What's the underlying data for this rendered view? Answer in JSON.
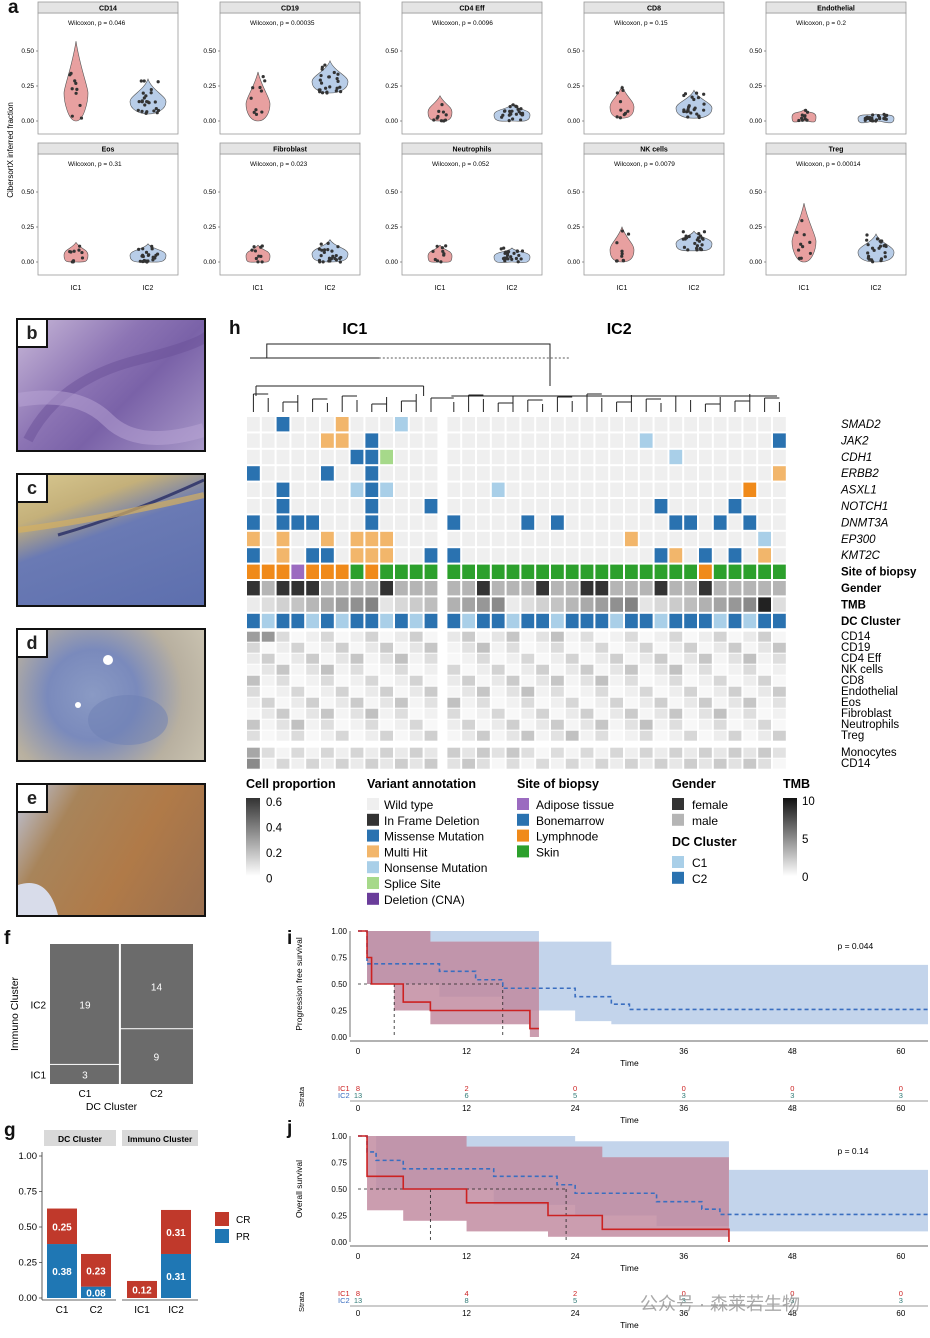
{
  "panel_letters": {
    "a": "a",
    "b": "b",
    "c": "c",
    "d": "d",
    "e": "e",
    "f": "f",
    "g": "g",
    "h": "h",
    "i": "i",
    "j": "j"
  },
  "colors": {
    "ic1": "#e8a0a0",
    "ic2": "#b8cde8",
    "ic1_line": "#cc2222",
    "ic2_line": "#3a6ec0",
    "purple": "#8a6b9e",
    "cr": "#c0392b",
    "pr": "#1f77b4",
    "missense": "#2a72b0",
    "multi": "#f2b66b",
    "nonsense": "#a9cfe8",
    "splice": "#a6d98a",
    "inframe": "#333333",
    "cna": "#6a3d9a",
    "adipose": "#9b6bc0",
    "bonemarrow": "#2a72b0",
    "lymph": "#f08a1a",
    "skin": "#2ca02c"
  },
  "chart_data": [
    {
      "type": "violin",
      "ylabel": "CibersortX inferred fraction",
      "groups": [
        "IC1",
        "IC2"
      ],
      "yticks": [
        "0.00",
        "0.25",
        "0.50"
      ],
      "facets": [
        {
          "name": "CD14",
          "stat": "Wilcoxon, p = 0.046",
          "ic1_range": [
            0.0,
            0.57
          ],
          "ic2_range": [
            0.05,
            0.3
          ]
        },
        {
          "name": "CD19",
          "stat": "Wilcoxon, p = 0.00035",
          "ic1_range": [
            0.0,
            0.35
          ],
          "ic2_range": [
            0.2,
            0.43
          ]
        },
        {
          "name": "CD4 Eff",
          "stat": "Wilcoxon, p = 0.0096",
          "ic1_range": [
            0.0,
            0.18
          ],
          "ic2_range": [
            0.0,
            0.12
          ]
        },
        {
          "name": "CD8",
          "stat": "Wilcoxon, p = 0.15",
          "ic1_range": [
            0.02,
            0.25
          ],
          "ic2_range": [
            0.02,
            0.22
          ]
        },
        {
          "name": "Endothelial",
          "stat": "Wilcoxon, p = 0.2",
          "ic1_range": [
            0.0,
            0.08
          ],
          "ic2_range": [
            0.0,
            0.05
          ]
        },
        {
          "name": "Eos",
          "stat": "Wilcoxon, p = 0.31",
          "ic1_range": [
            0.0,
            0.14
          ],
          "ic2_range": [
            0.0,
            0.13
          ]
        },
        {
          "name": "Fibroblast",
          "stat": "Wilcoxon, p = 0.023",
          "ic1_range": [
            0.0,
            0.12
          ],
          "ic2_range": [
            0.0,
            0.16
          ]
        },
        {
          "name": "Neutrophils",
          "stat": "Wilcoxon, p = 0.052",
          "ic1_range": [
            0.0,
            0.12
          ],
          "ic2_range": [
            0.0,
            0.1
          ]
        },
        {
          "name": "NK cells",
          "stat": "Wilcoxon, p = 0.0079",
          "ic1_range": [
            0.0,
            0.25
          ],
          "ic2_range": [
            0.08,
            0.22
          ]
        },
        {
          "name": "Treg",
          "stat": "Wilcoxon, p = 0.00014",
          "ic1_range": [
            0.0,
            0.42
          ],
          "ic2_range": [
            0.0,
            0.2
          ]
        }
      ]
    },
    {
      "type": "heatmap",
      "group_labels": [
        "IC1",
        "IC2"
      ],
      "gene_rows": [
        "SMAD2",
        "JAK2",
        "CDH1",
        "ERBB2",
        "ASXL1",
        "NOTCH1",
        "DNMT3A",
        "EP300",
        "KMT2C"
      ],
      "annotation_rows": [
        "Site of biopsy",
        "Gender",
        "TMB",
        "DC Cluster"
      ],
      "cell_rows": [
        "CD14",
        "CD19",
        "CD4 Eff",
        "NK cells",
        "CD8",
        "Endothelial",
        "Eos",
        "Fibroblast",
        "Neutrophils",
        "Treg"
      ],
      "extra_rows": [
        "Monocytes",
        "CD14"
      ],
      "n_columns": 36,
      "n_ic1_columns": 13,
      "legend": {
        "cell_title": "Cell proportion",
        "cell_ticks": [
          "0.6",
          "0.4",
          "0.2",
          "0"
        ],
        "variant_title": "Variant annotation",
        "variants": [
          {
            "label": "Wild type",
            "color": "#efefef"
          },
          {
            "label": "In  Frame  Deletion",
            "color": "#333333"
          },
          {
            "label": "Missense  Mutation",
            "color": "#2a72b0"
          },
          {
            "label": "Multi  Hit",
            "color": "#f2b66b"
          },
          {
            "label": "Nonsense  Mutation",
            "color": "#a9cfe8"
          },
          {
            "label": "Splice  Site",
            "color": "#a6d98a"
          },
          {
            "label": "Deletion  (CNA)",
            "color": "#6a3d9a"
          }
        ],
        "site_title": "Site of biopsy",
        "sites": [
          {
            "label": "Adipose  tissue",
            "color": "#9b6bc0"
          },
          {
            "label": "Bonemarrow",
            "color": "#2a72b0"
          },
          {
            "label": "Lymphnode",
            "color": "#f08a1a"
          },
          {
            "label": "Skin",
            "color": "#2ca02c"
          }
        ],
        "gender_title": "Gender",
        "genders": [
          {
            "label": "female",
            "color": "#333333"
          },
          {
            "label": "male",
            "color": "#b5b5b5"
          }
        ],
        "dc_title": "DC Cluster",
        "dcs": [
          {
            "label": "C1",
            "color": "#a9cfe8"
          },
          {
            "label": "C2",
            "color": "#2a72b0"
          }
        ],
        "tmb_title": "TMB",
        "tmb_ticks": [
          "10",
          "5",
          "0"
        ]
      }
    },
    {
      "type": "mosaic",
      "xlabel": "DC Cluster",
      "ylabel": "Immuno Cluster",
      "x_categories": [
        "C1",
        "C2"
      ],
      "y_categories": [
        "IC1",
        "IC2"
      ],
      "counts": {
        "C1": {
          "IC1": 3,
          "IC2": 19
        },
        "C2": {
          "IC1": 9,
          "IC2": 14
        }
      }
    },
    {
      "type": "bar",
      "facets": [
        "DC Cluster",
        "Immuno Cluster"
      ],
      "categories": [
        "C1",
        "C2",
        "IC1",
        "IC2"
      ],
      "yticks": [
        "0.00",
        "0.25",
        "0.50",
        "0.75",
        "1.00"
      ],
      "series": [
        {
          "name": "PR",
          "values": [
            0.38,
            0.08,
            0.0,
            0.31
          ]
        },
        {
          "name": "CR",
          "values": [
            0.25,
            0.23,
            0.12,
            0.31
          ]
        }
      ],
      "labels": {
        "PR": [
          "0.38",
          "0.08",
          "",
          "0.31"
        ],
        "CR": [
          "0.25",
          "0.23",
          "0.12",
          "0.31"
        ]
      }
    },
    {
      "type": "line",
      "name": "i",
      "ylabel": "Progression free survival",
      "xlabel": "Time",
      "pvalue": "p = 0.044",
      "xticks": [
        "0",
        "12",
        "24",
        "36",
        "48",
        "60"
      ],
      "yticks": [
        "0.00",
        "0.25",
        "0.50",
        "0.75",
        "1.00"
      ],
      "xlim": [
        0,
        63
      ],
      "ylim": [
        0,
        1
      ],
      "series": [
        {
          "name": "IC1",
          "steps": [
            [
              0,
              1
            ],
            [
              1,
              0.75
            ],
            [
              1.5,
              0.5
            ],
            [
              4,
              0.5
            ],
            [
              5,
              0.33
            ],
            [
              8,
              0.25
            ],
            [
              19,
              0.08
            ],
            [
              20,
              0.08
            ]
          ],
          "ci_upper": [
            [
              0,
              1
            ],
            [
              1,
              1
            ],
            [
              4,
              1
            ],
            [
              8,
              0.9
            ],
            [
              20,
              0.9
            ]
          ],
          "ci_lower": [
            [
              0,
              1
            ],
            [
              1,
              0.5
            ],
            [
              4,
              0.25
            ],
            [
              8,
              0.12
            ],
            [
              19,
              0.0
            ],
            [
              20,
              0.0
            ]
          ]
        },
        {
          "name": "IC2",
          "steps": [
            [
              0,
              1
            ],
            [
              1,
              0.69
            ],
            [
              9,
              0.62
            ],
            [
              13,
              0.54
            ],
            [
              16,
              0.46
            ],
            [
              24,
              0.38
            ],
            [
              28,
              0.31
            ],
            [
              30,
              0.26
            ],
            [
              63,
              0.26
            ]
          ],
          "ci_upper": [
            [
              0,
              1
            ],
            [
              13,
              1
            ],
            [
              20,
              0.9
            ],
            [
              28,
              0.68
            ],
            [
              63,
              0.68
            ]
          ],
          "ci_lower": [
            [
              0,
              1
            ],
            [
              1,
              0.5
            ],
            [
              9,
              0.38
            ],
            [
              16,
              0.25
            ],
            [
              24,
              0.15
            ],
            [
              28,
              0.12
            ],
            [
              63,
              0.12
            ]
          ]
        }
      ],
      "median_lines": [
        4,
        16
      ],
      "risk_table": {
        "label": "Strata",
        "xlabel": "Time",
        "IC1": [
          "8",
          "2",
          "0",
          "0",
          "0",
          "0"
        ],
        "IC2": [
          "13",
          "6",
          "5",
          "3",
          "3",
          "3"
        ]
      }
    },
    {
      "type": "line",
      "name": "j",
      "ylabel": "Overall survival",
      "xlabel": "Time",
      "pvalue": "p = 0.14",
      "xticks": [
        "0",
        "12",
        "24",
        "36",
        "48",
        "60"
      ],
      "yticks": [
        "0.00",
        "0.25",
        "0.50",
        "0.75",
        "1.00"
      ],
      "xlim": [
        0,
        63
      ],
      "ylim": [
        0,
        1
      ],
      "series": [
        {
          "name": "IC1",
          "steps": [
            [
              0,
              1
            ],
            [
              1,
              0.62
            ],
            [
              5,
              0.5
            ],
            [
              12,
              0.37
            ],
            [
              21,
              0.25
            ],
            [
              27,
              0.12
            ],
            [
              41,
              0.0
            ]
          ],
          "ci_upper": [
            [
              0,
              1
            ],
            [
              12,
              0.9
            ],
            [
              27,
              0.8
            ],
            [
              41,
              0.8
            ]
          ],
          "ci_lower": [
            [
              0,
              1
            ],
            [
              1,
              0.3
            ],
            [
              5,
              0.2
            ],
            [
              12,
              0.1
            ],
            [
              21,
              0.05
            ],
            [
              41,
              0.0
            ]
          ]
        },
        {
          "name": "IC2",
          "steps": [
            [
              0,
              1
            ],
            [
              1,
              0.85
            ],
            [
              2,
              0.77
            ],
            [
              5,
              0.69
            ],
            [
              15,
              0.62
            ],
            [
              22,
              0.54
            ],
            [
              24,
              0.46
            ],
            [
              33,
              0.38
            ],
            [
              38,
              0.31
            ],
            [
              40,
              0.26
            ],
            [
              63,
              0.26
            ]
          ],
          "ci_upper": [
            [
              0,
              1
            ],
            [
              12,
              1
            ],
            [
              24,
              0.95
            ],
            [
              41,
              0.68
            ],
            [
              63,
              0.68
            ]
          ],
          "ci_lower": [
            [
              0,
              1
            ],
            [
              2,
              0.5
            ],
            [
              15,
              0.35
            ],
            [
              24,
              0.25
            ],
            [
              33,
              0.15
            ],
            [
              41,
              0.1
            ],
            [
              63,
              0.1
            ]
          ]
        }
      ],
      "median_lines": [
        8,
        23
      ],
      "risk_table": {
        "label": "Strata",
        "xlabel": "Time",
        "IC1": [
          "8",
          "4",
          "2",
          "0",
          "0",
          "0"
        ],
        "IC2": [
          "13",
          "8",
          "5",
          "3",
          "3",
          "3"
        ]
      }
    }
  ],
  "watermark": "公众号 · 森莱若生物"
}
